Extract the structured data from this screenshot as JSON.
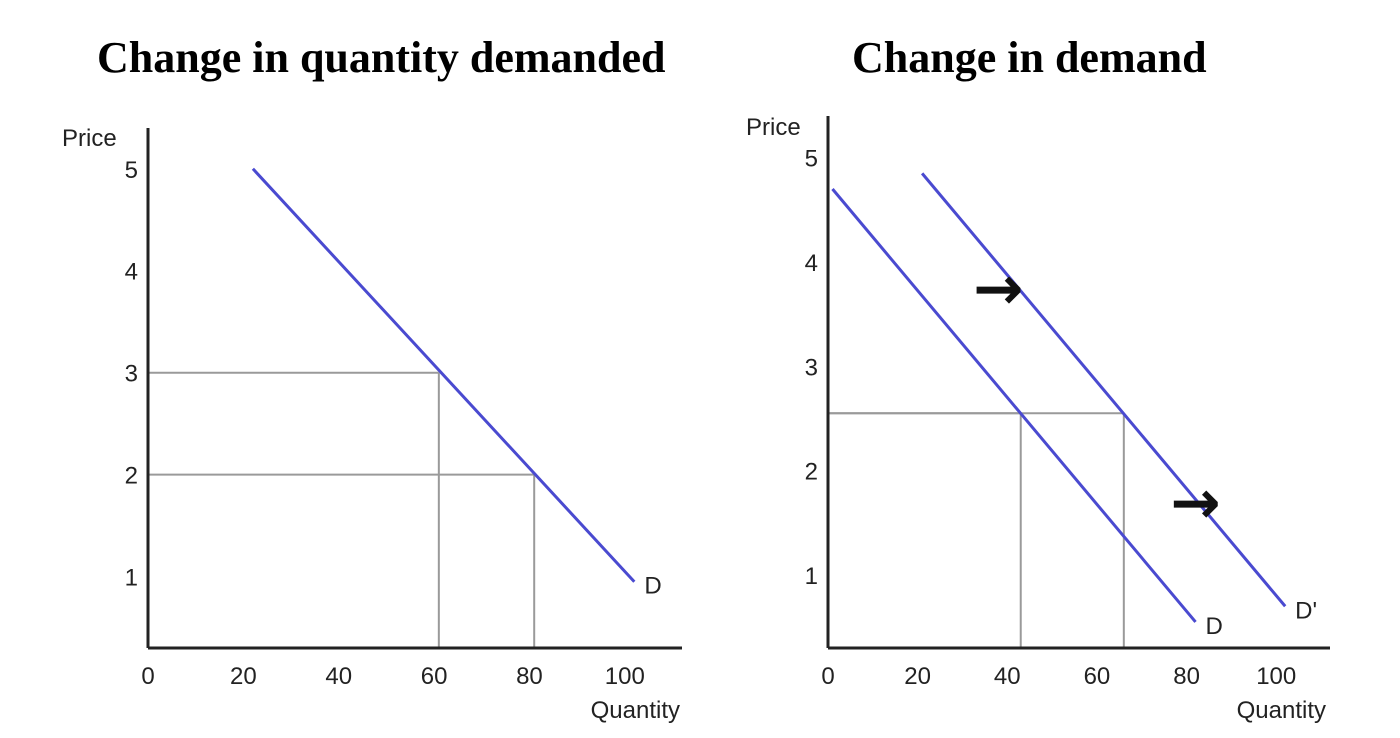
{
  "chart_data": [
    {
      "type": "line",
      "title": "Change in quantity demanded",
      "xlabel": "Quantity",
      "ylabel": "Price",
      "x_ticks": [
        0,
        20,
        40,
        60,
        80,
        100
      ],
      "y_ticks": [
        1,
        2,
        3,
        4,
        5
      ],
      "xlim": [
        0,
        112
      ],
      "ylim": [
        0.3,
        5.4
      ],
      "series": [
        {
          "label": "D",
          "points": [
            [
              22,
              5
            ],
            [
              102,
              0.95
            ]
          ]
        }
      ],
      "reference_points": [
        [
          61,
          3
        ],
        [
          81,
          2
        ]
      ],
      "colors": {
        "curve": "#4a4ad0",
        "guide": "#9a9a9a",
        "axis": "#222222"
      }
    },
    {
      "type": "line",
      "title": "Change in demand",
      "xlabel": "Quantity",
      "ylabel": "Price",
      "x_ticks": [
        0,
        20,
        40,
        60,
        80,
        100
      ],
      "y_ticks": [
        1,
        2,
        3,
        4,
        5
      ],
      "xlim": [
        0,
        112
      ],
      "ylim": [
        0.3,
        5.4
      ],
      "series": [
        {
          "label": "D",
          "points": [
            [
              1,
              4.7
            ],
            [
              82,
              0.55
            ]
          ]
        },
        {
          "label": "D'",
          "points": [
            [
              21,
              4.85
            ],
            [
              102,
              0.7
            ]
          ]
        }
      ],
      "reference_points": [
        [
          43,
          2.55
        ],
        [
          66,
          2.55
        ]
      ],
      "arrows": [
        {
          "direction": "right",
          "glyph": "→",
          "at": [
            38,
            3.55
          ]
        },
        {
          "direction": "right",
          "glyph": "→",
          "at": [
            82,
            1.5
          ]
        }
      ],
      "colors": {
        "curve": "#4a4ad0",
        "guide": "#9a9a9a",
        "axis": "#222222",
        "arrow": "#111111"
      }
    }
  ]
}
